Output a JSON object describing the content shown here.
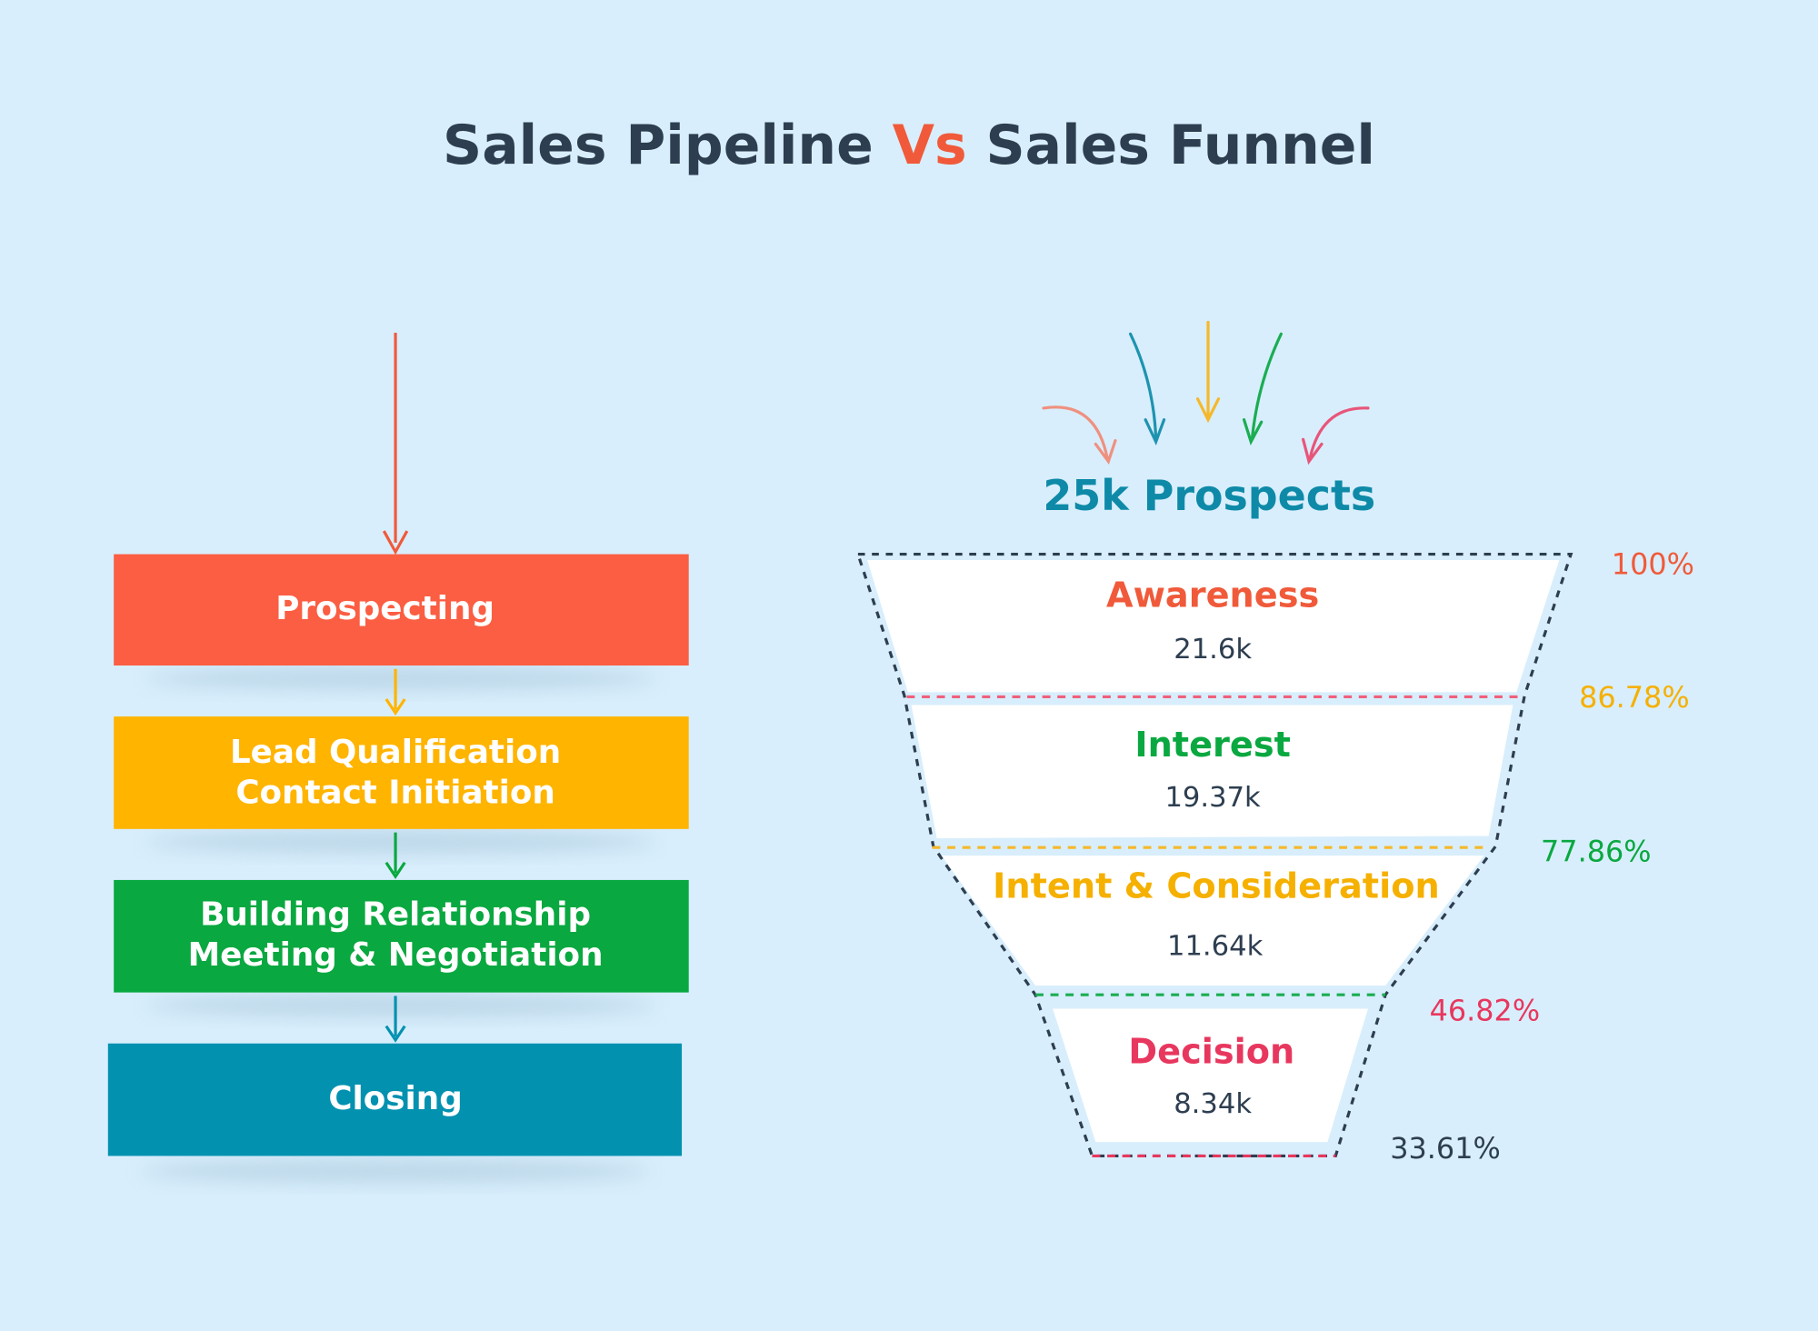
{
  "header": {
    "title_parts": [
      "Sales Pipeline",
      "Vs",
      "Sales Funnel"
    ]
  },
  "pipeline": {
    "steps": [
      {
        "lines": [
          "Prospecting"
        ]
      },
      {
        "lines": [
          "Lead Qualification",
          "Contact Initiation"
        ]
      },
      {
        "lines": [
          "Building Relationship",
          "Meeting & Negotiation"
        ]
      },
      {
        "lines": [
          "Closing"
        ]
      }
    ]
  },
  "funnel": {
    "prospects": "25k Prospects",
    "stages": [
      {
        "name": "Awareness",
        "value": "21.6k"
      },
      {
        "name": "Interest",
        "value": "19.37k"
      },
      {
        "name": "Intent & Consideration",
        "value": "11.64k"
      },
      {
        "name": "Decision",
        "value": "8.34k"
      }
    ],
    "percentages": [
      "100%",
      "86.78%",
      "77.86%",
      "46.82%",
      "33.61%"
    ]
  }
}
